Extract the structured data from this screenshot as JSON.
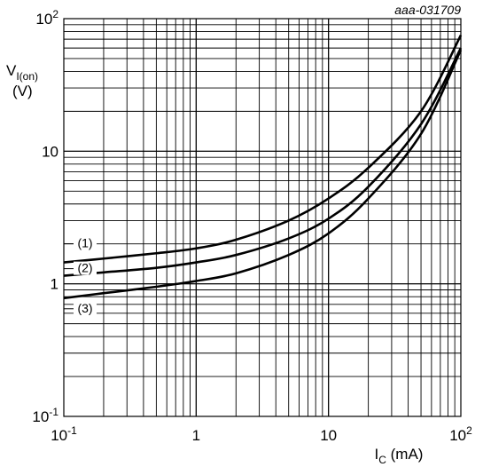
{
  "chart_data": {
    "type": "line",
    "figure_code": "aaa-031709",
    "xscale": "log",
    "yscale": "log",
    "xlim": [
      0.1,
      100
    ],
    "ylim": [
      0.1,
      100
    ],
    "grid": true,
    "xlabel": {
      "main": "I",
      "sub": "C",
      "unit": " (mA)"
    },
    "ylabel": {
      "main": "V",
      "sub": "I(on)",
      "unit": "(V)"
    },
    "xticks": [
      {
        "value": 0.1,
        "base": "10",
        "exp": "-1"
      },
      {
        "value": 1,
        "base": "1",
        "exp": ""
      },
      {
        "value": 10,
        "base": "10",
        "exp": ""
      },
      {
        "value": 100,
        "base": "10",
        "exp": "2"
      }
    ],
    "yticks": [
      {
        "value": 0.1,
        "base": "10",
        "exp": "-1"
      },
      {
        "value": 1,
        "base": "1",
        "exp": ""
      },
      {
        "value": 10,
        "base": "10",
        "exp": ""
      },
      {
        "value": 100,
        "base": "10",
        "exp": "2"
      }
    ],
    "series": [
      {
        "label": "(1)",
        "x": [
          0.1,
          0.2,
          0.5,
          1,
          2,
          5,
          10,
          20,
          50,
          100
        ],
        "y": [
          1.45,
          1.55,
          1.7,
          1.85,
          2.15,
          3.0,
          4.4,
          7.5,
          20,
          75
        ]
      },
      {
        "label": "(2)",
        "x": [
          0.1,
          0.2,
          0.5,
          1,
          2,
          5,
          10,
          20,
          50,
          100
        ],
        "y": [
          1.15,
          1.22,
          1.32,
          1.45,
          1.65,
          2.2,
          3.1,
          5.4,
          16,
          60
        ]
      },
      {
        "label": "(3)",
        "x": [
          0.1,
          0.2,
          0.5,
          1,
          2,
          5,
          10,
          20,
          50,
          100
        ],
        "y": [
          0.78,
          0.85,
          0.95,
          1.05,
          1.2,
          1.65,
          2.4,
          4.4,
          13.5,
          58
        ]
      }
    ]
  }
}
